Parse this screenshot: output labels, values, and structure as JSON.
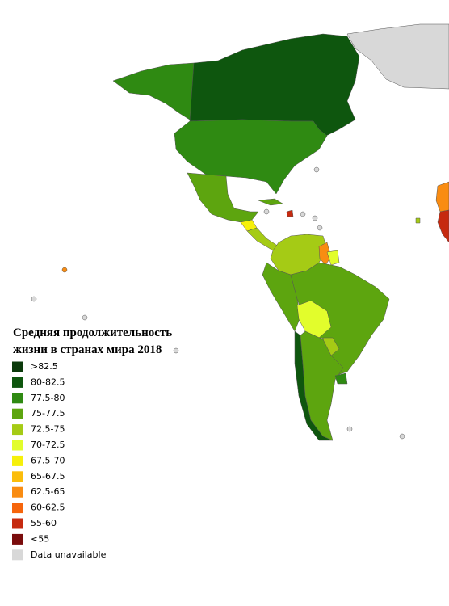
{
  "legend": {
    "title_lines": [
      "Средняя продолжительность",
      "жизни в странах мира 2018"
    ],
    "items": [
      {
        "label": ">82.5",
        "color": "#0b3a0b"
      },
      {
        "label": "80-82.5",
        "color": "#0e560e"
      },
      {
        "label": "77.5-80",
        "color": "#2f8a12"
      },
      {
        "label": "75-77.5",
        "color": "#5da50f"
      },
      {
        "label": "72.5-75",
        "color": "#a5cb15"
      },
      {
        "label": "70-72.5",
        "color": "#e2fd2c"
      },
      {
        "label": "67.5-70",
        "color": "#f6f00a"
      },
      {
        "label": "65-67.5",
        "color": "#fbbd0b"
      },
      {
        "label": "62.5-65",
        "color": "#f98c12"
      },
      {
        "label": "60-62.5",
        "color": "#f6650c"
      },
      {
        "label": "55-60",
        "color": "#c62a10"
      },
      {
        "label": "<55",
        "color": "#7a0c0c"
      },
      {
        "label": "Data unavailable",
        "color": "#d8d8d8"
      }
    ]
  }
}
